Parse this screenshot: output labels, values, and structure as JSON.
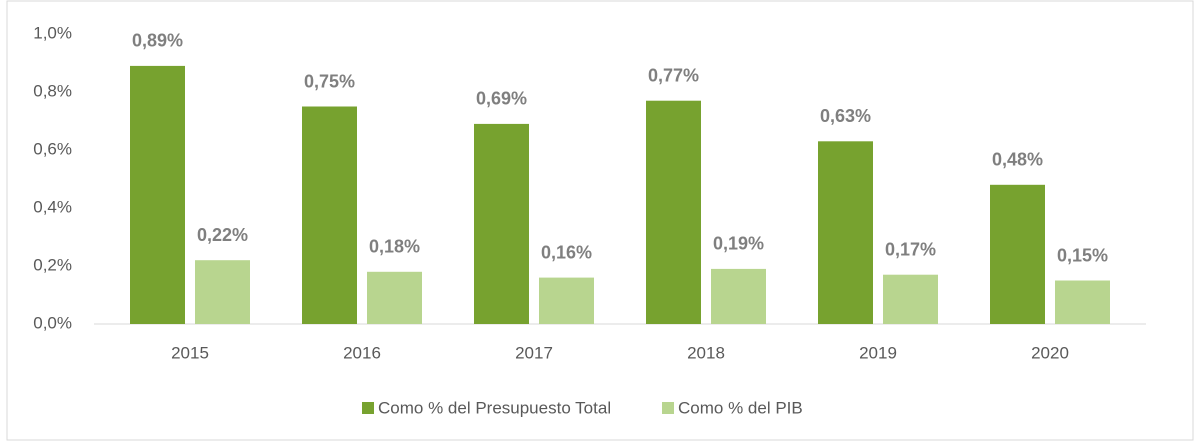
{
  "chart_data": {
    "type": "bar",
    "categories": [
      "2015",
      "2016",
      "2017",
      "2018",
      "2019",
      "2020"
    ],
    "series": [
      {
        "name": "Como % del Presupuesto Total",
        "color": "#77a22f",
        "values": [
          0.89,
          0.75,
          0.69,
          0.77,
          0.63,
          0.48
        ],
        "value_labels": [
          "0,89%",
          "0,75%",
          "0,69%",
          "0,77%",
          "0,63%",
          "0,48%"
        ]
      },
      {
        "name": "Como % del PIB",
        "color": "#b8d58f",
        "values": [
          0.22,
          0.18,
          0.16,
          0.19,
          0.17,
          0.15
        ],
        "value_labels": [
          "0,22%",
          "0,18%",
          "0,16%",
          "0,19%",
          "0,17%",
          "0,15%"
        ]
      }
    ],
    "ylim": [
      0,
      1
    ],
    "yticks": [
      {
        "value": 0,
        "label": "0,0%"
      },
      {
        "value": 0.2,
        "label": "0,2%"
      },
      {
        "value": 0.4,
        "label": "0,4%"
      },
      {
        "value": 0.6,
        "label": "0,6%"
      },
      {
        "value": 0.8,
        "label": "0,8%"
      },
      {
        "value": 1,
        "label": "1,0%"
      }
    ],
    "grid": false,
    "legend": "bottom"
  }
}
